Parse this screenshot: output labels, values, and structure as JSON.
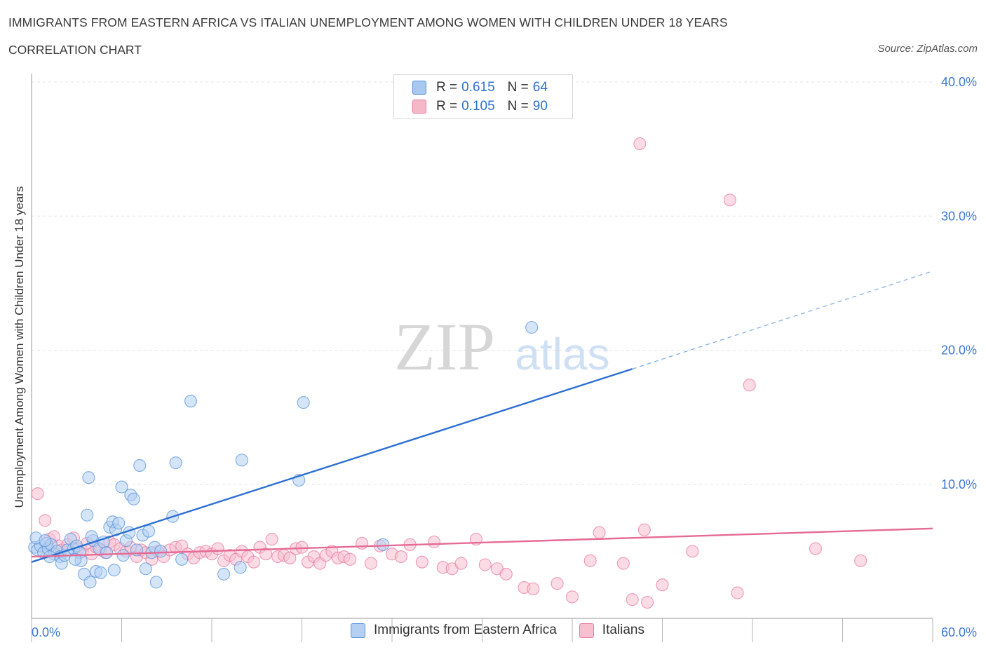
{
  "header": {
    "title": "IMMIGRANTS FROM EASTERN AFRICA VS ITALIAN UNEMPLOYMENT AMONG WOMEN WITH CHILDREN UNDER 18 YEARS",
    "subtitle": "CORRELATION CHART",
    "source": "Source: ZipAtlas.com"
  },
  "watermark": {
    "zip": "ZIP",
    "atlas": "atlas"
  },
  "legend": {
    "rows": [
      {
        "r_label": "R = ",
        "r_value": "0.615",
        "n_label": "N = ",
        "n_value": "64",
        "color": "#a8c8f0"
      },
      {
        "r_label": "R = ",
        "r_value": "0.105",
        "n_label": "N = ",
        "n_value": "90",
        "color": "#f5b8c8"
      }
    ]
  },
  "chart_data": {
    "type": "scatter",
    "title": "IMMIGRANTS FROM EASTERN AFRICA VS ITALIAN UNEMPLOYMENT AMONG WOMEN WITH CHILDREN UNDER 18 YEARS",
    "xlabel": "",
    "ylabel": "Unemployment Among Women with Children Under 18 years",
    "xlim": [
      0,
      60
    ],
    "ylim": [
      0,
      40
    ],
    "x_tick_labels": [
      "0.0%",
      "60.0%"
    ],
    "y_tick_labels": [
      "10.0%",
      "20.0%",
      "30.0%",
      "40.0%"
    ],
    "y_ticks": [
      10,
      20,
      30,
      40
    ],
    "grid": true,
    "legend_position": "bottom",
    "series": [
      {
        "name": "Immigrants from Eastern Africa",
        "color": "#5b93d9",
        "fill": "#b3cff2",
        "trend": {
          "x": [
            0,
            40
          ],
          "y": [
            4.2,
            18.6
          ],
          "dashed_to": [
            60,
            25.9
          ]
        },
        "points": [
          [
            0.2,
            5.3
          ],
          [
            0.4,
            5.1
          ],
          [
            0.6,
            5.4
          ],
          [
            0.8,
            4.9
          ],
          [
            1.0,
            5.6
          ],
          [
            1.1,
            5.2
          ],
          [
            1.3,
            5.5
          ],
          [
            1.5,
            4.8
          ],
          [
            1.7,
            5.0
          ],
          [
            1.9,
            4.6
          ],
          [
            2.0,
            4.1
          ],
          [
            2.2,
            4.7
          ],
          [
            2.4,
            5.1
          ],
          [
            2.6,
            5.9
          ],
          [
            2.8,
            5.2
          ],
          [
            3.0,
            5.4
          ],
          [
            3.2,
            4.9
          ],
          [
            3.3,
            4.3
          ],
          [
            3.5,
            3.3
          ],
          [
            3.7,
            7.7
          ],
          [
            3.8,
            10.5
          ],
          [
            3.9,
            2.7
          ],
          [
            4.1,
            5.8
          ],
          [
            4.3,
            3.5
          ],
          [
            4.5,
            5.2
          ],
          [
            4.6,
            3.4
          ],
          [
            4.8,
            5.7
          ],
          [
            5.0,
            4.9
          ],
          [
            5.2,
            6.8
          ],
          [
            5.4,
            7.2
          ],
          [
            5.6,
            6.6
          ],
          [
            5.8,
            7.1
          ],
          [
            6.0,
            9.8
          ],
          [
            6.1,
            4.7
          ],
          [
            6.3,
            5.8
          ],
          [
            6.5,
            6.4
          ],
          [
            6.6,
            9.2
          ],
          [
            6.8,
            8.9
          ],
          [
            7.0,
            5.1
          ],
          [
            7.2,
            11.4
          ],
          [
            7.4,
            6.2
          ],
          [
            7.6,
            3.7
          ],
          [
            7.8,
            6.5
          ],
          [
            8.0,
            4.9
          ],
          [
            8.2,
            5.3
          ],
          [
            8.3,
            2.7
          ],
          [
            8.6,
            5.0
          ],
          [
            9.4,
            7.6
          ],
          [
            9.6,
            11.6
          ],
          [
            10.0,
            4.4
          ],
          [
            10.6,
            16.2
          ],
          [
            12.8,
            3.3
          ],
          [
            13.9,
            3.8
          ],
          [
            14.0,
            11.8
          ],
          [
            17.8,
            10.3
          ],
          [
            18.1,
            16.1
          ],
          [
            23.4,
            5.5
          ],
          [
            33.3,
            21.7
          ],
          [
            0.3,
            6.0
          ],
          [
            1.2,
            4.6
          ],
          [
            2.9,
            4.4
          ],
          [
            4.0,
            6.1
          ],
          [
            5.5,
            3.6
          ],
          [
            0.9,
            5.8
          ]
        ]
      },
      {
        "name": "Italians",
        "color": "#e87aa0",
        "fill": "#f7c0d0",
        "trend": {
          "x": [
            0,
            60
          ],
          "y": [
            4.6,
            6.7
          ]
        },
        "points": [
          [
            0.4,
            9.3
          ],
          [
            0.9,
            7.3
          ],
          [
            1.2,
            5.9
          ],
          [
            1.5,
            6.1
          ],
          [
            1.8,
            5.4
          ],
          [
            2.0,
            5.1
          ],
          [
            2.4,
            5.5
          ],
          [
            2.8,
            6.0
          ],
          [
            3.1,
            5.2
          ],
          [
            3.4,
            5.0
          ],
          [
            3.7,
            5.6
          ],
          [
            4.0,
            4.8
          ],
          [
            4.3,
            5.3
          ],
          [
            4.6,
            5.1
          ],
          [
            4.9,
            4.9
          ],
          [
            5.2,
            5.7
          ],
          [
            5.5,
            5.5
          ],
          [
            5.9,
            5.2
          ],
          [
            6.3,
            5.0
          ],
          [
            6.6,
            5.3
          ],
          [
            7.0,
            4.6
          ],
          [
            7.3,
            5.1
          ],
          [
            7.6,
            4.9
          ],
          [
            8.0,
            4.4
          ],
          [
            8.4,
            5.0
          ],
          [
            8.8,
            4.6
          ],
          [
            9.2,
            5.1
          ],
          [
            9.6,
            5.3
          ],
          [
            10.0,
            5.4
          ],
          [
            10.4,
            4.8
          ],
          [
            10.8,
            4.5
          ],
          [
            11.2,
            4.9
          ],
          [
            11.6,
            5.0
          ],
          [
            12.0,
            4.8
          ],
          [
            12.4,
            5.2
          ],
          [
            12.8,
            4.3
          ],
          [
            13.2,
            4.7
          ],
          [
            13.6,
            4.4
          ],
          [
            14.0,
            5.0
          ],
          [
            14.4,
            4.6
          ],
          [
            14.8,
            4.2
          ],
          [
            15.2,
            5.3
          ],
          [
            15.6,
            4.8
          ],
          [
            16.0,
            5.9
          ],
          [
            16.4,
            4.6
          ],
          [
            16.8,
            4.7
          ],
          [
            17.2,
            4.5
          ],
          [
            17.6,
            5.2
          ],
          [
            18.0,
            5.3
          ],
          [
            18.4,
            4.2
          ],
          [
            18.8,
            4.6
          ],
          [
            19.2,
            4.1
          ],
          [
            19.6,
            4.7
          ],
          [
            20.0,
            5.0
          ],
          [
            20.4,
            4.5
          ],
          [
            20.8,
            4.6
          ],
          [
            21.2,
            4.4
          ],
          [
            22.0,
            5.6
          ],
          [
            22.6,
            4.1
          ],
          [
            23.2,
            5.4
          ],
          [
            24.0,
            4.8
          ],
          [
            24.6,
            4.6
          ],
          [
            25.2,
            5.5
          ],
          [
            26.0,
            4.2
          ],
          [
            26.8,
            5.7
          ],
          [
            27.4,
            3.8
          ],
          [
            28.0,
            3.7
          ],
          [
            28.6,
            4.1
          ],
          [
            29.6,
            5.9
          ],
          [
            30.2,
            4.0
          ],
          [
            31.0,
            3.7
          ],
          [
            31.6,
            3.3
          ],
          [
            32.8,
            2.3
          ],
          [
            33.4,
            2.2
          ],
          [
            35.0,
            2.6
          ],
          [
            37.2,
            4.3
          ],
          [
            37.8,
            6.4
          ],
          [
            39.4,
            4.1
          ],
          [
            40.0,
            1.4
          ],
          [
            40.8,
            6.6
          ],
          [
            41.0,
            1.2
          ],
          [
            42.0,
            2.5
          ],
          [
            44.0,
            5.0
          ],
          [
            40.5,
            35.4
          ],
          [
            46.5,
            31.2
          ],
          [
            47.8,
            17.4
          ],
          [
            52.2,
            5.2
          ],
          [
            55.2,
            4.3
          ],
          [
            36.0,
            1.6
          ],
          [
            47.0,
            1.9
          ]
        ]
      }
    ]
  }
}
